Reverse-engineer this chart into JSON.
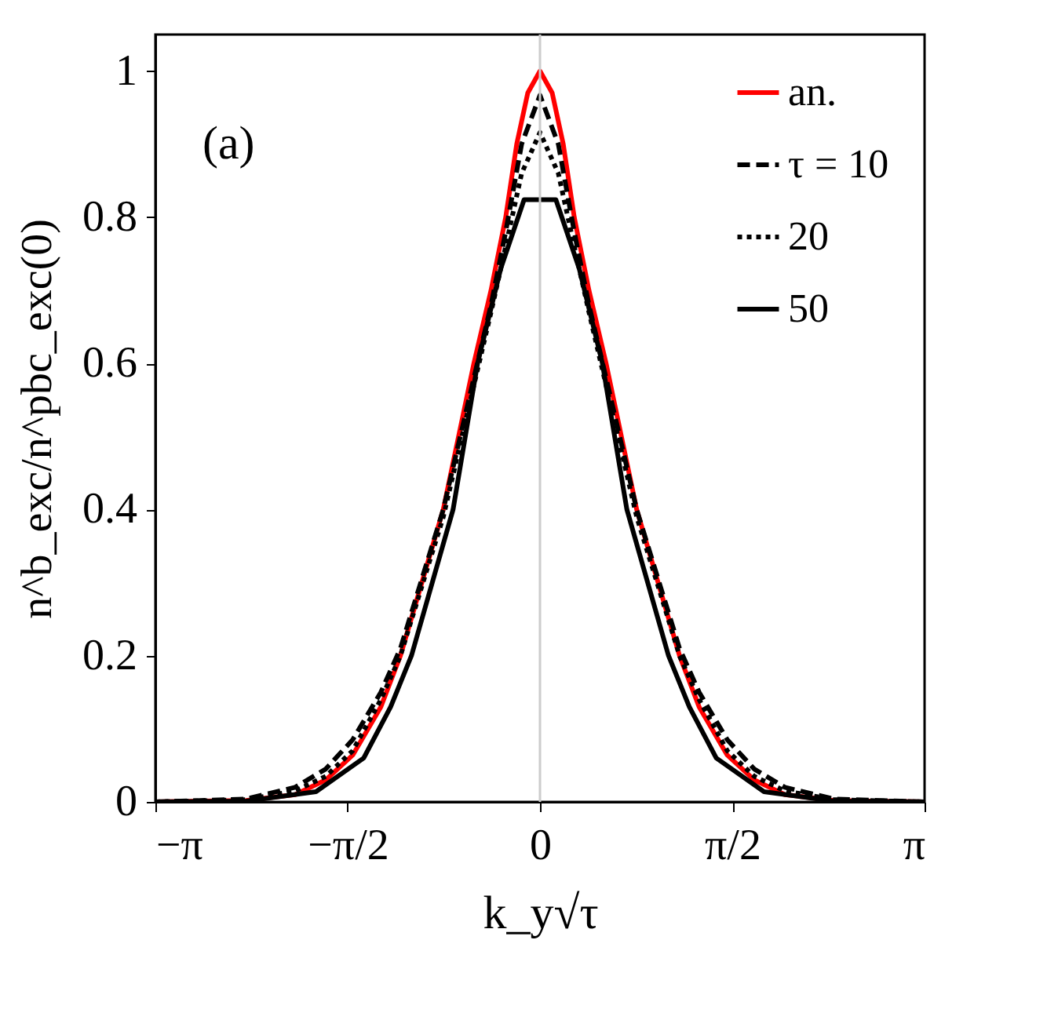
{
  "chart_data": {
    "type": "line",
    "xlabel": "k_y√τ",
    "ylabel": "n^b_exc/n^pbc_exc(0)",
    "annotations": [
      "(a)"
    ],
    "xlim": [
      -3.14159,
      3.14159
    ],
    "xticks": [
      {
        "value": -3.14159,
        "label": "−π"
      },
      {
        "value": -1.5708,
        "label": "−π/2"
      },
      0,
      {
        "value": 1.5708,
        "label": "π/2"
      },
      {
        "value": 3.14159,
        "label": "π"
      }
    ],
    "ylim": [
      0,
      1.05
    ],
    "yticks": [
      0,
      0.2,
      0.4,
      0.6,
      0.8,
      1
    ],
    "grid": false,
    "legend": "top right",
    "marker": "none",
    "ref_lines": [
      {
        "axis": "x",
        "value": 0,
        "color": "#cccccc"
      }
    ],
    "series": [
      {
        "name": "an.",
        "color": "#ff0000",
        "line_style": "solid",
        "x": [
          -3.14,
          -2.4,
          -2.0,
          -1.75,
          -1.53,
          -1.3,
          -1.14,
          -0.79,
          -0.54,
          -0.4,
          -0.28,
          -0.19,
          -0.1,
          0,
          0.1,
          0.19,
          0.28,
          0.4,
          0.54,
          0.79,
          1.14,
          1.3,
          1.53,
          1.75,
          2.0,
          2.4,
          3.14
        ],
        "values": [
          0,
          0.002,
          0.01,
          0.03,
          0.064,
          0.13,
          0.2,
          0.4,
          0.6,
          0.7,
          0.8,
          0.9,
          0.97,
          1.0,
          0.97,
          0.9,
          0.8,
          0.7,
          0.6,
          0.4,
          0.2,
          0.13,
          0.064,
          0.03,
          0.01,
          0.002,
          0
        ]
      },
      {
        "name": "τ = 10",
        "color": "#000000",
        "line_style": "dashed",
        "x": [
          -3.14,
          -2.4,
          -2.0,
          -1.75,
          -1.53,
          -1.3,
          -1.14,
          -0.79,
          -0.54,
          -0.4,
          -0.28,
          -0.15,
          0,
          0.15,
          0.28,
          0.4,
          0.54,
          0.79,
          1.14,
          1.3,
          1.53,
          1.75,
          2.0,
          2.4,
          3.14
        ],
        "values": [
          0,
          0.004,
          0.02,
          0.045,
          0.085,
          0.15,
          0.21,
          0.4,
          0.58,
          0.68,
          0.78,
          0.9,
          0.967,
          0.9,
          0.78,
          0.68,
          0.58,
          0.4,
          0.21,
          0.15,
          0.085,
          0.045,
          0.02,
          0.004,
          0
        ]
      },
      {
        "name": "20",
        "color": "#000000",
        "line_style": "dotted",
        "x": [
          -3.14,
          -2.4,
          -2.0,
          -1.75,
          -1.53,
          -1.3,
          -1.14,
          -0.79,
          -0.54,
          -0.4,
          -0.28,
          -0.15,
          0,
          0.15,
          0.28,
          0.4,
          0.54,
          0.79,
          1.14,
          1.3,
          1.53,
          1.75,
          2.0,
          2.4,
          3.14
        ],
        "values": [
          0,
          0.003,
          0.015,
          0.035,
          0.07,
          0.14,
          0.2,
          0.39,
          0.57,
          0.67,
          0.76,
          0.86,
          0.916,
          0.86,
          0.76,
          0.67,
          0.57,
          0.39,
          0.2,
          0.14,
          0.07,
          0.035,
          0.015,
          0.003,
          0
        ]
      },
      {
        "name": "50",
        "color": "#000000",
        "line_style": "solid",
        "x": [
          -3.14,
          -2.4,
          -1.83,
          -1.44,
          -1.22,
          -1.05,
          -0.71,
          -0.51,
          -0.32,
          -0.13,
          0.13,
          0.32,
          0.51,
          0.71,
          1.05,
          1.22,
          1.44,
          1.83,
          2.4,
          3.14
        ],
        "values": [
          0,
          0.001,
          0.014,
          0.06,
          0.13,
          0.2,
          0.4,
          0.6,
          0.73,
          0.824,
          0.824,
          0.73,
          0.6,
          0.4,
          0.2,
          0.13,
          0.06,
          0.014,
          0.001,
          0
        ]
      }
    ]
  }
}
